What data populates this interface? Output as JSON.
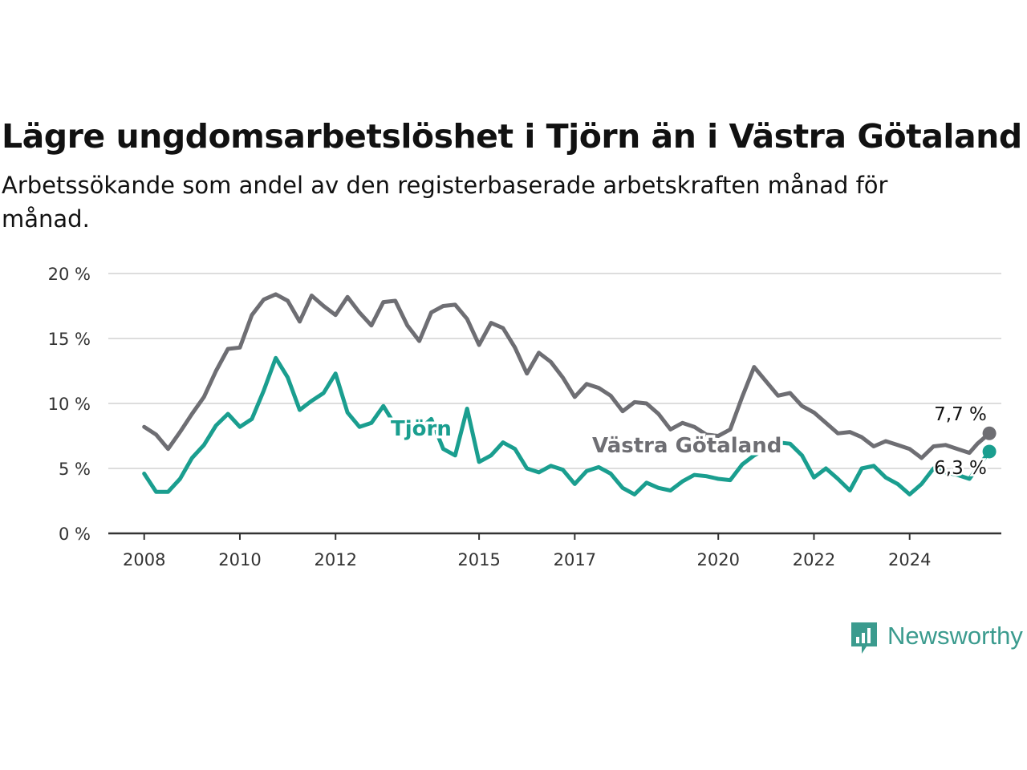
{
  "title": "Lägre ungdomsarbetslöshet i Tjörn än i Västra Götaland",
  "subtitle": "Arbetssökande som andel av den registerbaserade arbetskraften månad för månad.",
  "logo": {
    "name": "Newsworthy",
    "icon": "newsworthy-chart-bubble-icon"
  },
  "colors": {
    "tjorn": "#1a9e8f",
    "vastra_gotaland": "#6e6e73",
    "grid": "#dddddd",
    "axis": "#333333"
  },
  "chart_data": {
    "type": "line",
    "title": "Lägre ungdomsarbetslöshet i Tjörn än i Västra Götaland",
    "subtitle": "Arbetssökande som andel av den registerbaserade arbetskraften månad för månad.",
    "x_ticks": [
      2008,
      2010,
      2012,
      2015,
      2017,
      2020,
      2022,
      2024
    ],
    "y_ticks": [
      "0 %",
      "5 %",
      "10 %",
      "15 %",
      "20 %"
    ],
    "ylim": [
      0,
      20
    ],
    "xlim": [
      "2007-04",
      "2025-12"
    ],
    "grid": "horizontal",
    "series": [
      {
        "name": "Västra Götaland",
        "end_label": "7,7 %",
        "points": [
          [
            "2008-01",
            8.2
          ],
          [
            "2008-04",
            7.6
          ],
          [
            "2008-07",
            6.5
          ],
          [
            "2008-10",
            7.8
          ],
          [
            "2009-01",
            9.2
          ],
          [
            "2009-04",
            10.5
          ],
          [
            "2009-07",
            12.5
          ],
          [
            "2009-10",
            14.2
          ],
          [
            "2010-01",
            14.3
          ],
          [
            "2010-04",
            16.8
          ],
          [
            "2010-07",
            18.0
          ],
          [
            "2010-10",
            18.4
          ],
          [
            "2011-01",
            17.9
          ],
          [
            "2011-04",
            16.3
          ],
          [
            "2011-07",
            18.3
          ],
          [
            "2011-10",
            17.5
          ],
          [
            "2012-01",
            16.8
          ],
          [
            "2012-04",
            18.2
          ],
          [
            "2012-07",
            17.0
          ],
          [
            "2012-10",
            16.0
          ],
          [
            "2013-01",
            17.8
          ],
          [
            "2013-04",
            17.9
          ],
          [
            "2013-07",
            16.0
          ],
          [
            "2013-10",
            14.8
          ],
          [
            "2014-01",
            17.0
          ],
          [
            "2014-04",
            17.5
          ],
          [
            "2014-07",
            17.6
          ],
          [
            "2014-10",
            16.5
          ],
          [
            "2015-01",
            14.5
          ],
          [
            "2015-04",
            16.2
          ],
          [
            "2015-07",
            15.8
          ],
          [
            "2015-10",
            14.3
          ],
          [
            "2016-01",
            12.3
          ],
          [
            "2016-04",
            13.9
          ],
          [
            "2016-07",
            13.2
          ],
          [
            "2016-10",
            12.0
          ],
          [
            "2017-01",
            10.5
          ],
          [
            "2017-04",
            11.5
          ],
          [
            "2017-07",
            11.2
          ],
          [
            "2017-10",
            10.6
          ],
          [
            "2018-01",
            9.4
          ],
          [
            "2018-04",
            10.1
          ],
          [
            "2018-07",
            10.0
          ],
          [
            "2018-10",
            9.2
          ],
          [
            "2019-01",
            8.0
          ],
          [
            "2019-04",
            8.5
          ],
          [
            "2019-07",
            8.2
          ],
          [
            "2019-10",
            7.6
          ],
          [
            "2020-01",
            7.5
          ],
          [
            "2020-04",
            8.0
          ],
          [
            "2020-07",
            10.5
          ],
          [
            "2020-10",
            12.8
          ],
          [
            "2021-01",
            11.7
          ],
          [
            "2021-04",
            10.6
          ],
          [
            "2021-07",
            10.8
          ],
          [
            "2021-10",
            9.8
          ],
          [
            "2022-01",
            9.3
          ],
          [
            "2022-04",
            8.5
          ],
          [
            "2022-07",
            7.7
          ],
          [
            "2022-10",
            7.8
          ],
          [
            "2023-01",
            7.4
          ],
          [
            "2023-04",
            6.7
          ],
          [
            "2023-07",
            7.1
          ],
          [
            "2023-10",
            6.8
          ],
          [
            "2024-01",
            6.5
          ],
          [
            "2024-04",
            5.8
          ],
          [
            "2024-07",
            6.7
          ],
          [
            "2024-10",
            6.8
          ],
          [
            "2025-01",
            6.5
          ],
          [
            "2025-04",
            6.2
          ],
          [
            "2025-06",
            6.9
          ],
          [
            "2025-09",
            7.7
          ]
        ]
      },
      {
        "name": "Tjörn",
        "end_label": "6,3 %",
        "points": [
          [
            "2008-01",
            4.6
          ],
          [
            "2008-04",
            3.2
          ],
          [
            "2008-07",
            3.2
          ],
          [
            "2008-10",
            4.2
          ],
          [
            "2009-01",
            5.8
          ],
          [
            "2009-04",
            6.8
          ],
          [
            "2009-07",
            8.3
          ],
          [
            "2009-10",
            9.2
          ],
          [
            "2010-01",
            8.2
          ],
          [
            "2010-04",
            8.8
          ],
          [
            "2010-07",
            11.0
          ],
          [
            "2010-10",
            13.5
          ],
          [
            "2011-01",
            12.0
          ],
          [
            "2011-04",
            9.5
          ],
          [
            "2011-07",
            10.2
          ],
          [
            "2011-10",
            10.8
          ],
          [
            "2012-01",
            12.3
          ],
          [
            "2012-04",
            9.3
          ],
          [
            "2012-07",
            8.2
          ],
          [
            "2012-10",
            8.5
          ],
          [
            "2013-01",
            9.8
          ],
          [
            "2013-04",
            8.3
          ],
          [
            "2013-07",
            8.5
          ],
          [
            "2013-10",
            8.0
          ],
          [
            "2014-01",
            8.8
          ],
          [
            "2014-04",
            6.5
          ],
          [
            "2014-07",
            6.0
          ],
          [
            "2014-10",
            9.6
          ],
          [
            "2015-01",
            5.5
          ],
          [
            "2015-04",
            6.0
          ],
          [
            "2015-07",
            7.0
          ],
          [
            "2015-10",
            6.5
          ],
          [
            "2016-01",
            5.0
          ],
          [
            "2016-04",
            4.7
          ],
          [
            "2016-07",
            5.2
          ],
          [
            "2016-10",
            4.9
          ],
          [
            "2017-01",
            3.8
          ],
          [
            "2017-04",
            4.8
          ],
          [
            "2017-07",
            5.1
          ],
          [
            "2017-10",
            4.6
          ],
          [
            "2018-01",
            3.5
          ],
          [
            "2018-04",
            3.0
          ],
          [
            "2018-07",
            3.9
          ],
          [
            "2018-10",
            3.5
          ],
          [
            "2019-01",
            3.3
          ],
          [
            "2019-04",
            4.0
          ],
          [
            "2019-07",
            4.5
          ],
          [
            "2019-10",
            4.4
          ],
          [
            "2020-01",
            4.2
          ],
          [
            "2020-04",
            4.1
          ],
          [
            "2020-07",
            5.3
          ],
          [
            "2020-10",
            6.0
          ],
          [
            "2021-01",
            6.5
          ],
          [
            "2021-04",
            7.0
          ],
          [
            "2021-07",
            6.9
          ],
          [
            "2021-10",
            6.0
          ],
          [
            "2022-01",
            4.3
          ],
          [
            "2022-04",
            5.0
          ],
          [
            "2022-07",
            4.2
          ],
          [
            "2022-10",
            3.3
          ],
          [
            "2023-01",
            5.0
          ],
          [
            "2023-04",
            5.2
          ],
          [
            "2023-07",
            4.3
          ],
          [
            "2023-10",
            3.8
          ],
          [
            "2024-01",
            3.0
          ],
          [
            "2024-04",
            3.8
          ],
          [
            "2024-07",
            5.0
          ],
          [
            "2024-10",
            4.7
          ],
          [
            "2025-01",
            4.5
          ],
          [
            "2025-04",
            4.2
          ],
          [
            "2025-09",
            6.3
          ]
        ]
      }
    ]
  }
}
